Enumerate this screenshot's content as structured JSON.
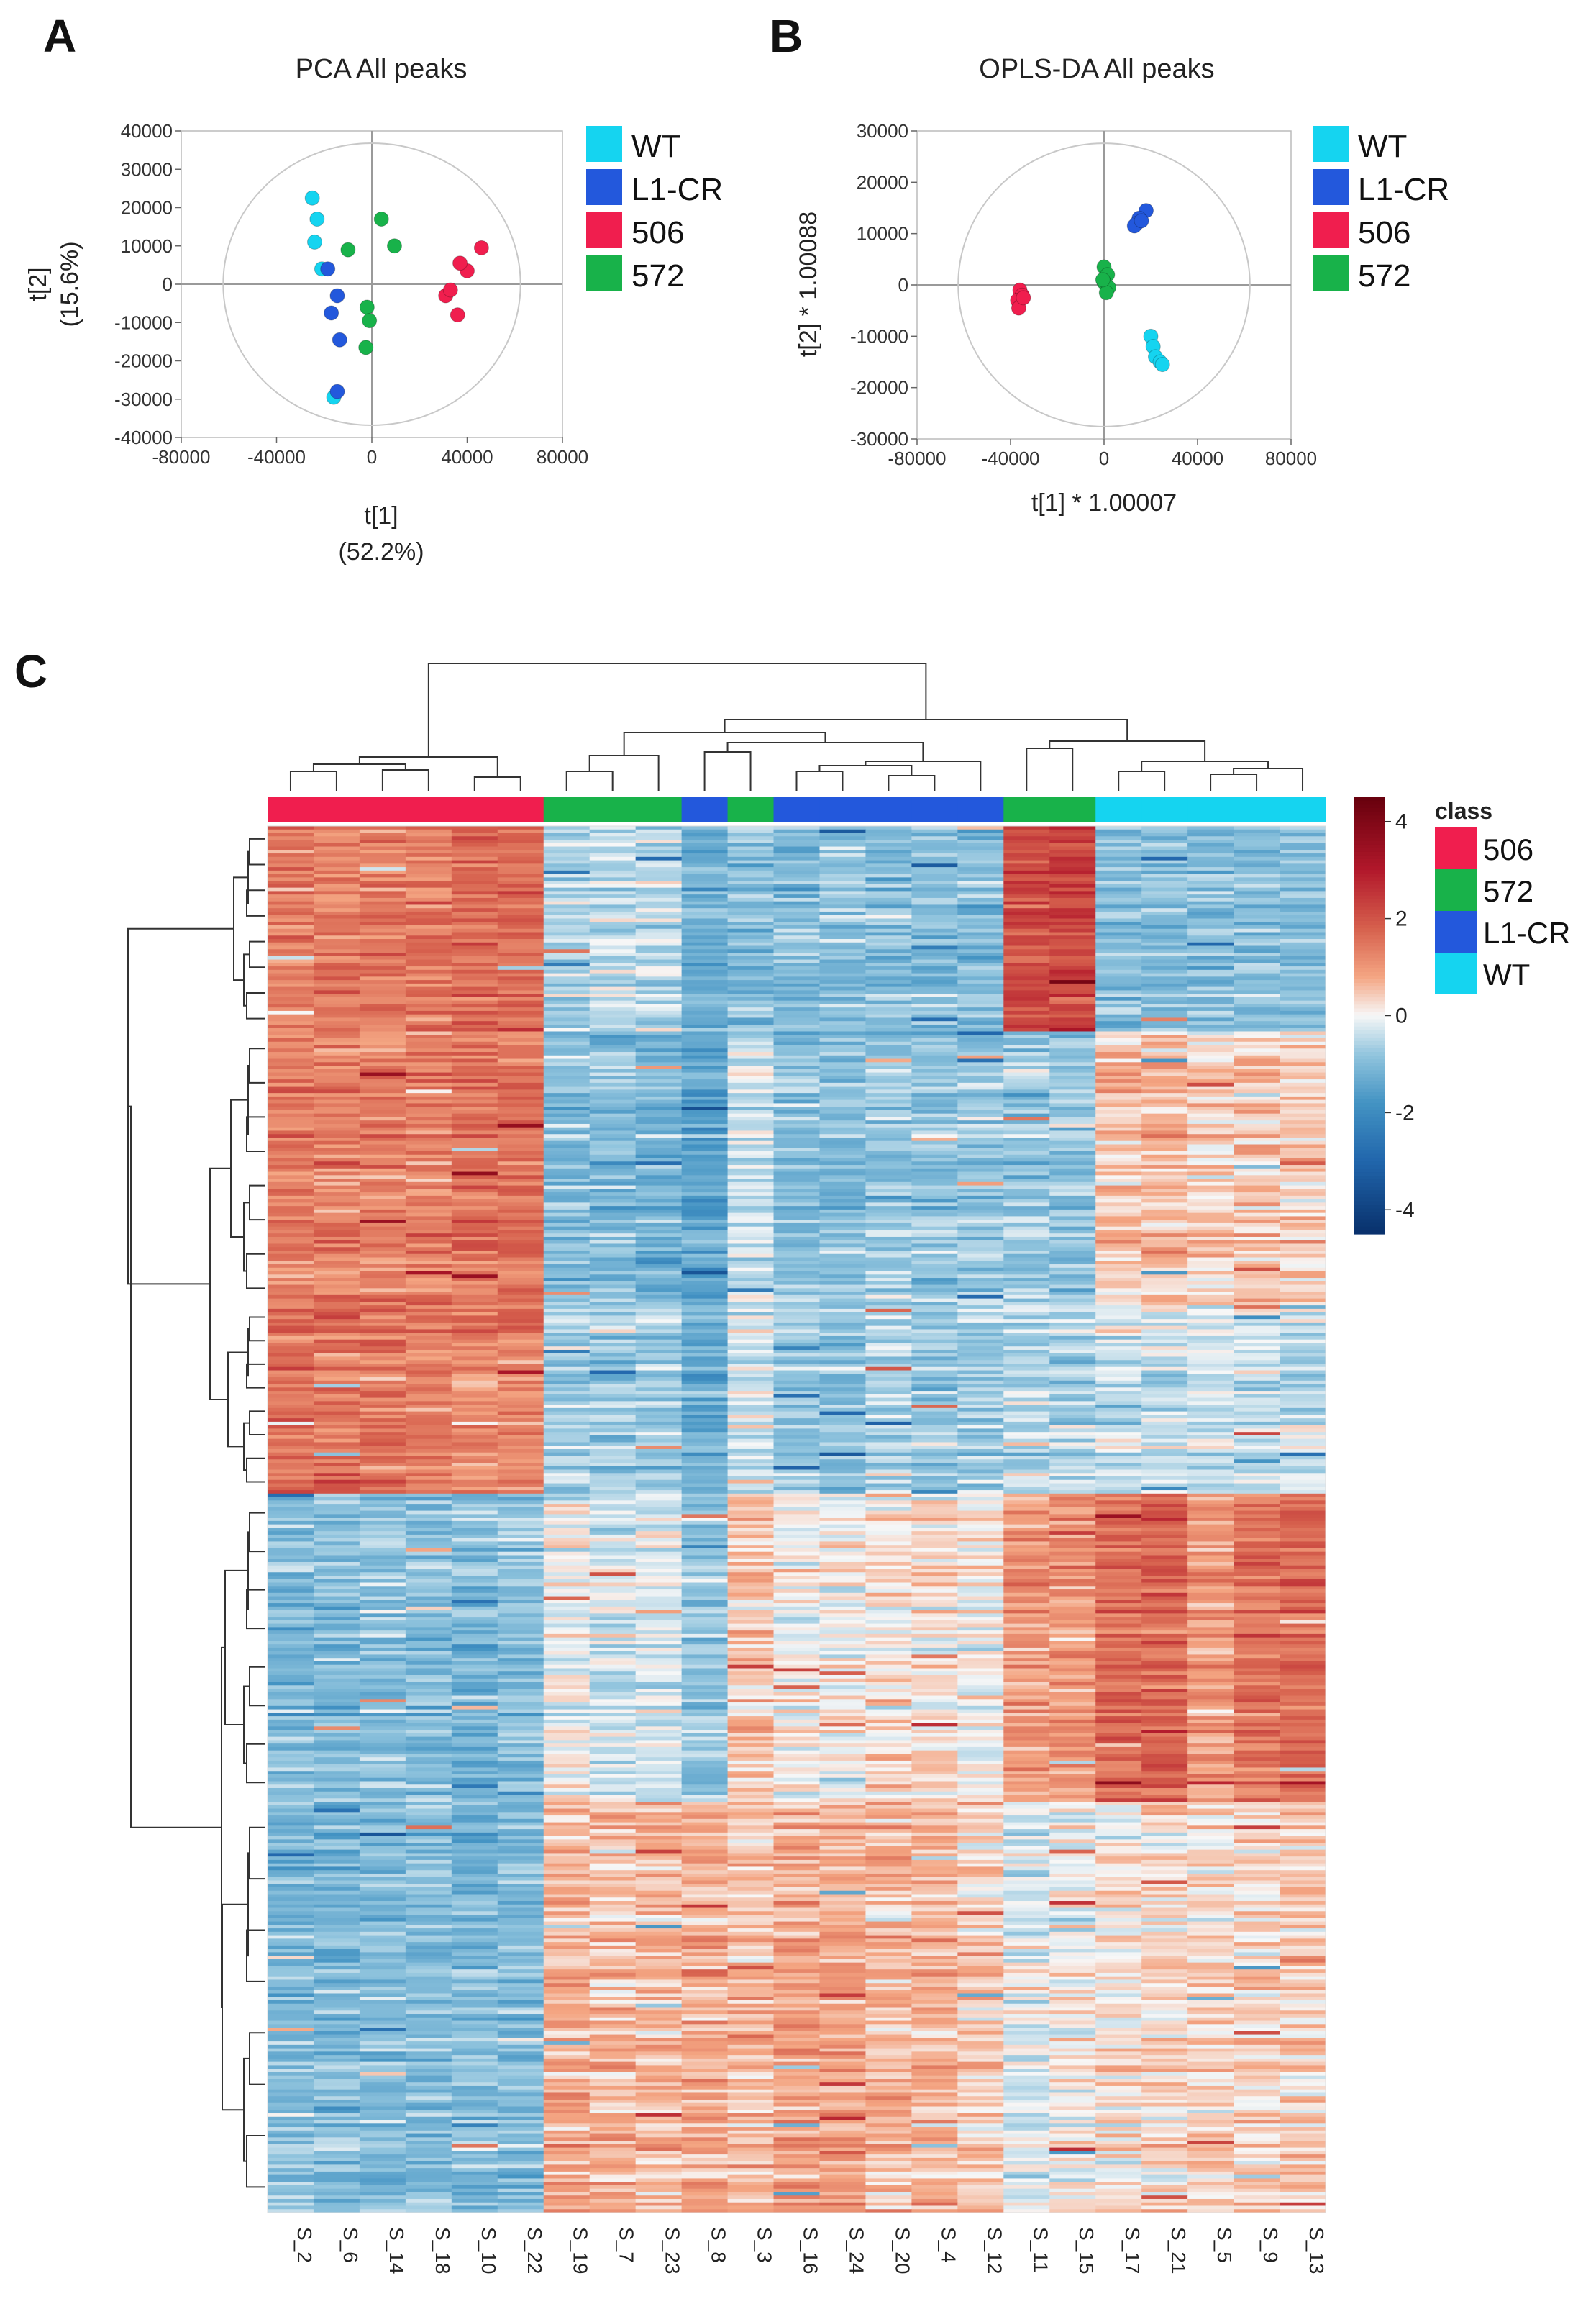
{
  "panels": {
    "a_letter": "A",
    "b_letter": "B",
    "c_letter": "C"
  },
  "colors": {
    "wt": "#15d4f0",
    "l1cr": "#2358dc",
    "g506": "#f01e4e",
    "g572": "#18b24a"
  },
  "chart_data": [
    {
      "type": "scatter",
      "title": "PCA All peaks",
      "xlabel": "t[1]",
      "xlabel2": "(52.2%)",
      "ylabel": "t[2]",
      "ylabel2": "(15.6%)",
      "xlim": [
        -80000,
        80000
      ],
      "ylim": [
        -40000,
        40000
      ],
      "xticks": [
        -80000,
        -40000,
        0,
        40000,
        80000
      ],
      "yticks": [
        40000,
        30000,
        20000,
        10000,
        0,
        -10000,
        -20000,
        -30000,
        -40000
      ],
      "xtick_labels": [
        "-80000",
        "-40000",
        "0",
        "40000",
        "80000"
      ],
      "ytick_labels": [
        "40000",
        "30000",
        "20000",
        "10000",
        "0",
        "-10000",
        "-20000",
        "-30000",
        "-40000"
      ],
      "legend": [
        "WT",
        "L1-CR",
        "506",
        "572"
      ],
      "series": [
        {
          "name": "WT",
          "points": [
            [
              -25000,
              22500
            ],
            [
              -23000,
              17000
            ],
            [
              -24000,
              11000
            ],
            [
              -21000,
              4000
            ],
            [
              -16000,
              -29500
            ]
          ]
        },
        {
          "name": "L1-CR",
          "points": [
            [
              -18500,
              4000
            ],
            [
              -17000,
              -7500
            ],
            [
              -14500,
              -3000
            ],
            [
              -13500,
              -14500
            ],
            [
              -14500,
              -28000
            ]
          ]
        },
        {
          "name": "506",
          "points": [
            [
              46000,
              9500
            ],
            [
              40000,
              3500
            ],
            [
              37000,
              5500
            ],
            [
              31000,
              -3000
            ],
            [
              33000,
              -1500
            ],
            [
              36000,
              -8000
            ]
          ]
        },
        {
          "name": "572",
          "points": [
            [
              4000,
              17000
            ],
            [
              9500,
              10000
            ],
            [
              -10000,
              9000
            ],
            [
              -2000,
              -6000
            ],
            [
              -1000,
              -9500
            ],
            [
              -2500,
              -16500
            ]
          ]
        }
      ]
    },
    {
      "type": "scatter",
      "title": "OPLS-DA All peaks",
      "xlabel": "t[1] * 1.00007",
      "ylabel": "t[2] * 1.00088",
      "xlim": [
        -80000,
        80000
      ],
      "ylim": [
        -30000,
        30000
      ],
      "xticks": [
        -80000,
        -40000,
        0,
        40000,
        80000
      ],
      "yticks": [
        30000,
        20000,
        10000,
        0,
        -10000,
        -20000,
        -30000
      ],
      "xtick_labels": [
        "-80000",
        "-40000",
        "0",
        "40000",
        "80000"
      ],
      "ytick_labels": [
        "30000",
        "20000",
        "10000",
        "0",
        "-10000",
        "-20000",
        "-30000"
      ],
      "legend": [
        "WT",
        "L1-CR",
        "506",
        "572"
      ],
      "series": [
        {
          "name": "WT",
          "points": [
            [
              20000,
              -10000
            ],
            [
              21000,
              -12000
            ],
            [
              22000,
              -14000
            ],
            [
              24000,
              -15000
            ],
            [
              25000,
              -15500
            ]
          ]
        },
        {
          "name": "L1-CR",
          "points": [
            [
              18000,
              14500
            ],
            [
              15000,
              13000
            ],
            [
              14000,
              12000
            ],
            [
              13000,
              11500
            ],
            [
              16000,
              12500
            ]
          ]
        },
        {
          "name": "506",
          "points": [
            [
              -36000,
              -1000
            ],
            [
              -35000,
              -2000
            ],
            [
              -37000,
              -3000
            ],
            [
              -36500,
              -4500
            ],
            [
              -34500,
              -2500
            ]
          ]
        },
        {
          "name": "572",
          "points": [
            [
              0,
              3500
            ],
            [
              1500,
              2000
            ],
            [
              0,
              500
            ],
            [
              2000,
              -500
            ],
            [
              1000,
              -1500
            ],
            [
              -500,
              1000
            ]
          ]
        }
      ]
    },
    {
      "type": "heatmap",
      "samples": [
        "S_2",
        "S_6",
        "S_14",
        "S_18",
        "S_10",
        "S_22",
        "S_19",
        "S_7",
        "S_23",
        "S_8",
        "S_3",
        "S_16",
        "S_24",
        "S_20",
        "S_4",
        "S_12",
        "S_11",
        "S_15",
        "S_17",
        "S_21",
        "S_5",
        "S_9",
        "S_13"
      ],
      "sample_class": [
        "506",
        "506",
        "506",
        "506",
        "506",
        "506",
        "572",
        "572",
        "572",
        "L1-CR",
        "572",
        "L1-CR",
        "L1-CR",
        "L1-CR",
        "L1-CR",
        "L1-CR",
        "572",
        "572",
        "WT",
        "WT",
        "WT",
        "WT",
        "WT"
      ],
      "legend_title": "class",
      "legend": [
        "506",
        "572",
        "L1-CR",
        "WT"
      ],
      "colorbar_range": [
        -4.5,
        4.5
      ],
      "colorbar_ticks": [
        4,
        2,
        0,
        -2,
        -4
      ],
      "colorbar_tick_labels": [
        "4",
        "2",
        "0",
        "-2",
        "-4"
      ],
      "row_blocks": [
        {
          "rows": 60,
          "levels": [
            1.4,
            1.4,
            1.4,
            1.4,
            1.6,
            1.6,
            -0.6,
            -0.5,
            -0.5,
            -1.3,
            -1.0,
            -1.0,
            -1.0,
            -1.0,
            -1.0,
            -1.0,
            2.0,
            2.2,
            -1.0,
            -1.0,
            -1.0,
            -1.0,
            -1.0
          ]
        },
        {
          "rows": 80,
          "levels": [
            1.4,
            1.3,
            1.3,
            1.3,
            1.5,
            1.5,
            -1.0,
            -1.0,
            -1.2,
            -1.5,
            -0.4,
            -1.0,
            -1.0,
            -0.8,
            -0.8,
            -0.8,
            -0.8,
            -0.8,
            0.5,
            0.6,
            0.3,
            0.5,
            0.4
          ]
        },
        {
          "rows": 55,
          "levels": [
            1.6,
            1.5,
            1.5,
            1.4,
            1.2,
            1.3,
            -0.6,
            -0.7,
            -0.7,
            -1.2,
            -0.3,
            -0.9,
            -0.9,
            -0.6,
            -0.7,
            -0.7,
            -0.5,
            -0.5,
            -0.3,
            -0.3,
            -0.4,
            -0.3,
            -0.4
          ]
        },
        {
          "rows": 90,
          "levels": [
            -1.0,
            -1.0,
            -0.9,
            -1.0,
            -1.1,
            -0.9,
            0.0,
            -0.3,
            -0.2,
            -0.8,
            0.5,
            0.0,
            0.0,
            0.2,
            0.2,
            0.0,
            1.0,
            1.0,
            1.6,
            1.8,
            1.0,
            1.5,
            1.6
          ]
        },
        {
          "rows": 120,
          "levels": [
            -1.0,
            -1.0,
            -1.0,
            -1.0,
            -1.0,
            -1.0,
            0.8,
            0.6,
            0.7,
            0.8,
            0.5,
            0.9,
            0.8,
            0.6,
            0.7,
            0.4,
            -0.2,
            0.0,
            0.2,
            0.3,
            0.3,
            0.3,
            0.4
          ]
        }
      ]
    }
  ]
}
